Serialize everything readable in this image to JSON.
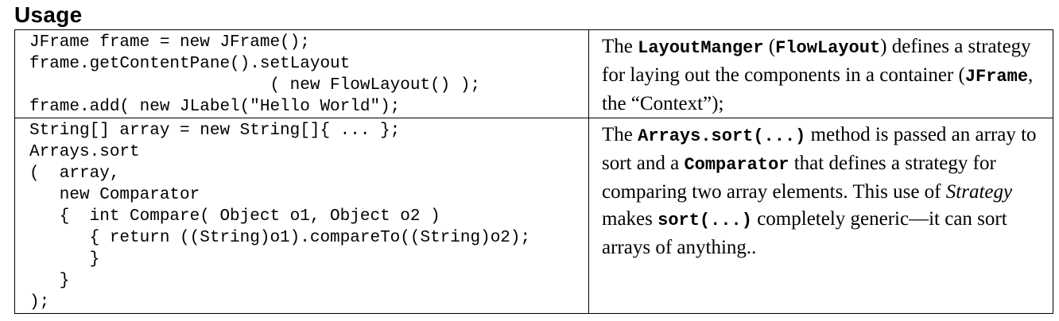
{
  "heading": "Usage",
  "rows": [
    {
      "code": "JFrame frame = new JFrame();\nframe.getContentPane().setLayout\n                        ( new FlowLayout() );\nframe.add( new JLabel(\"Hello World\");",
      "desc": {
        "t1": "The ",
        "c1": "LayoutManger",
        "t2": " (",
        "c2": "FlowLayout",
        "t3": ") defines a strategy for laying out the components in a container (",
        "c3": "JFrame",
        "t4": ", the “Context”);"
      }
    },
    {
      "code": "String[] array = new String[]{ ... };\nArrays.sort\n(  array,\n   new Comparator\n   {  int Compare( Object o1, Object o2 )\n      { return ((String)o1).compareTo((String)o2);\n      }\n   }\n);",
      "desc": {
        "t1": "The ",
        "c1": "Arrays.sort(...)",
        "t2": " method is passed an array to sort and a ",
        "c2": "Comparator",
        "t3": " that defines a strategy for comparing two array elements. This use of ",
        "e1": "Strategy",
        "t4": " makes ",
        "c3": "sort(...)",
        "t5": " completely generic—it can sort arrays of anything.."
      }
    }
  ]
}
